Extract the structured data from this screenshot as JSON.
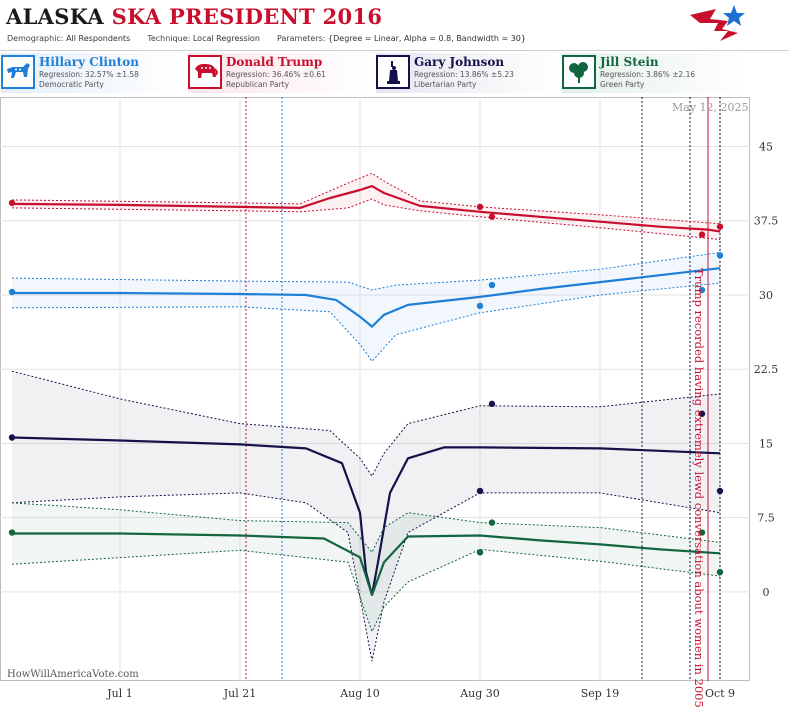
{
  "header": {
    "title_state": "ALASKA",
    "title_rest": "SKA PRESIDENT 2016",
    "demographic_label": "Demographic:",
    "demographic_value": "All Respondents",
    "technique_label": "Technique:",
    "technique_value": "Local Regression",
    "parameters_label": "Parameters:",
    "parameters_value": "{Degree = Linear, Alpha = 0.8, Bandwidth = 30}"
  },
  "candidates": [
    {
      "name": "Hillary Clinton",
      "regression": "Regression: 32.57% ±1.58",
      "party": "Democratic Party",
      "color": "#1f7fd6",
      "icon": "donkey-icon"
    },
    {
      "name": "Donald Trump",
      "regression": "Regression: 36.46% ±0.61",
      "party": "Republican Party",
      "color": "#c8102e",
      "icon": "elephant-icon"
    },
    {
      "name": "Gary Johnson",
      "regression": "Regression: 13.86% ±5.23",
      "party": "Libertarian Party",
      "color": "#14124a",
      "icon": "statue-of-liberty-icon"
    },
    {
      "name": "Jill Stein",
      "regression": "Regression: 3.86% ±2.16",
      "party": "Green Party",
      "color": "#13653f",
      "icon": "tree-icon"
    }
  ],
  "datestamp": "May 12, 2025",
  "watermark": "HowWillAmericaVote.com",
  "annotation": "Trump recorded having extremely lewd conversation about women in 2005",
  "chart_data": {
    "type": "line",
    "x_domain": [
      "2016-06-11",
      "2016-10-14"
    ],
    "ylim": [
      -9,
      50
    ],
    "y_ticks": [
      0,
      7.5,
      15,
      22.5,
      30,
      37.5,
      45
    ],
    "y_tick_labels": [
      "0",
      "7.5",
      "15",
      "22.5",
      "30",
      "37.5",
      "45"
    ],
    "x_ticks": [
      {
        "date": "2016-07-01",
        "label": "Jul 1"
      },
      {
        "date": "2016-07-21",
        "label": "Jul 21"
      },
      {
        "date": "2016-08-10",
        "label": "Aug 10"
      },
      {
        "date": "2016-08-30",
        "label": "Aug 30"
      },
      {
        "date": "2016-09-19",
        "label": "Sep 19"
      },
      {
        "date": "2016-10-09",
        "label": "Oct 9"
      }
    ],
    "grid": true,
    "event_lines": [
      {
        "date": "2016-07-22",
        "color": "#c8102e"
      },
      {
        "date": "2016-07-28",
        "color": "#1f7fd6"
      },
      {
        "date": "2016-09-26",
        "color": "#14124a"
      },
      {
        "date": "2016-10-04",
        "color": "#14124a"
      },
      {
        "date": "2016-10-07",
        "color": "#c8102e",
        "solid": true
      },
      {
        "date": "2016-10-09",
        "color": "#14124a"
      }
    ],
    "series": [
      {
        "name": "Donald Trump",
        "color": "#c8102e",
        "line": [
          [
            "2016-06-13",
            39.2
          ],
          [
            "2016-07-01",
            39.1
          ],
          [
            "2016-07-21",
            38.9
          ],
          [
            "2016-07-31",
            38.8
          ],
          [
            "2016-08-05",
            39.8
          ],
          [
            "2016-08-10",
            40.6
          ],
          [
            "2016-08-12",
            41.0
          ],
          [
            "2016-08-14",
            40.3
          ],
          [
            "2016-08-20",
            39.0
          ],
          [
            "2016-08-30",
            38.4
          ],
          [
            "2016-09-09",
            37.9
          ],
          [
            "2016-09-19",
            37.4
          ],
          [
            "2016-09-29",
            36.9
          ],
          [
            "2016-10-07",
            36.6
          ],
          [
            "2016-10-09",
            36.4
          ]
        ],
        "upper": [
          [
            "2016-06-13",
            39.6
          ],
          [
            "2016-07-21",
            39.3
          ],
          [
            "2016-07-31",
            39.2
          ],
          [
            "2016-08-08",
            41.3
          ],
          [
            "2016-08-12",
            42.3
          ],
          [
            "2016-08-14",
            41.5
          ],
          [
            "2016-08-20",
            39.5
          ],
          [
            "2016-08-30",
            38.9
          ],
          [
            "2016-09-19",
            38.1
          ],
          [
            "2016-10-09",
            37.2
          ]
        ],
        "lower": [
          [
            "2016-06-13",
            38.8
          ],
          [
            "2016-07-21",
            38.5
          ],
          [
            "2016-07-31",
            38.4
          ],
          [
            "2016-08-08",
            38.8
          ],
          [
            "2016-08-12",
            39.7
          ],
          [
            "2016-08-14",
            39.1
          ],
          [
            "2016-08-20",
            38.5
          ],
          [
            "2016-08-30",
            37.9
          ],
          [
            "2016-09-19",
            36.8
          ],
          [
            "2016-10-09",
            35.6
          ]
        ],
        "points": [
          [
            "2016-06-13",
            39.3
          ],
          [
            "2016-08-30",
            38.9
          ],
          [
            "2016-09-01",
            37.9
          ],
          [
            "2016-10-06",
            36.1
          ],
          [
            "2016-10-09",
            36.9
          ]
        ]
      },
      {
        "name": "Hillary Clinton",
        "color": "#1f7fd6",
        "line": [
          [
            "2016-06-13",
            30.2
          ],
          [
            "2016-07-01",
            30.2
          ],
          [
            "2016-07-21",
            30.1
          ],
          [
            "2016-08-01",
            30.0
          ],
          [
            "2016-08-06",
            29.5
          ],
          [
            "2016-08-10",
            27.8
          ],
          [
            "2016-08-12",
            26.8
          ],
          [
            "2016-08-14",
            28.0
          ],
          [
            "2016-08-18",
            29.0
          ],
          [
            "2016-08-30",
            29.8
          ],
          [
            "2016-09-09",
            30.6
          ],
          [
            "2016-09-19",
            31.3
          ],
          [
            "2016-09-29",
            32.0
          ],
          [
            "2016-10-09",
            32.7
          ]
        ],
        "upper": [
          [
            "2016-06-13",
            31.7
          ],
          [
            "2016-07-21",
            31.4
          ],
          [
            "2016-08-08",
            31.3
          ],
          [
            "2016-08-12",
            30.5
          ],
          [
            "2016-08-16",
            31.0
          ],
          [
            "2016-08-30",
            31.5
          ],
          [
            "2016-09-19",
            32.6
          ],
          [
            "2016-10-09",
            34.3
          ]
        ],
        "lower": [
          [
            "2016-06-13",
            28.7
          ],
          [
            "2016-07-21",
            28.8
          ],
          [
            "2016-08-05",
            28.3
          ],
          [
            "2016-08-10",
            25.0
          ],
          [
            "2016-08-12",
            23.3
          ],
          [
            "2016-08-16",
            26.0
          ],
          [
            "2016-08-30",
            28.2
          ],
          [
            "2016-09-19",
            30.0
          ],
          [
            "2016-10-09",
            31.2
          ]
        ],
        "points": [
          [
            "2016-06-13",
            30.3
          ],
          [
            "2016-08-30",
            28.9
          ],
          [
            "2016-09-01",
            31.0
          ],
          [
            "2016-10-06",
            30.5
          ],
          [
            "2016-10-09",
            34.0
          ]
        ]
      },
      {
        "name": "Gary Johnson",
        "color": "#14124a",
        "line": [
          [
            "2016-06-13",
            15.6
          ],
          [
            "2016-07-01",
            15.3
          ],
          [
            "2016-07-21",
            14.9
          ],
          [
            "2016-08-01",
            14.5
          ],
          [
            "2016-08-07",
            13.0
          ],
          [
            "2016-08-10",
            8.0
          ],
          [
            "2016-08-11",
            2.0
          ],
          [
            "2016-08-12",
            -0.3
          ],
          [
            "2016-08-13",
            3.0
          ],
          [
            "2016-08-15",
            10.0
          ],
          [
            "2016-08-18",
            13.5
          ],
          [
            "2016-08-24",
            14.6
          ],
          [
            "2016-08-30",
            14.6
          ],
          [
            "2016-09-19",
            14.5
          ],
          [
            "2016-10-09",
            14.0
          ]
        ],
        "upper": [
          [
            "2016-06-13",
            22.3
          ],
          [
            "2016-07-01",
            19.5
          ],
          [
            "2016-07-21",
            17.0
          ],
          [
            "2016-08-05",
            16.3
          ],
          [
            "2016-08-10",
            13.5
          ],
          [
            "2016-08-12",
            11.7
          ],
          [
            "2016-08-14",
            14.0
          ],
          [
            "2016-08-18",
            17.0
          ],
          [
            "2016-08-30",
            18.8
          ],
          [
            "2016-09-19",
            18.7
          ],
          [
            "2016-10-09",
            20.0
          ]
        ],
        "lower": [
          [
            "2016-06-13",
            9.0
          ],
          [
            "2016-07-01",
            9.6
          ],
          [
            "2016-07-21",
            10.0
          ],
          [
            "2016-08-01",
            9.0
          ],
          [
            "2016-08-08",
            6.0
          ],
          [
            "2016-08-12",
            -7.0
          ],
          [
            "2016-08-14",
            -1.0
          ],
          [
            "2016-08-18",
            6.0
          ],
          [
            "2016-08-30",
            10.0
          ],
          [
            "2016-09-19",
            10.0
          ],
          [
            "2016-10-09",
            8.0
          ]
        ],
        "points": [
          [
            "2016-06-13",
            15.6
          ],
          [
            "2016-08-30",
            10.2
          ],
          [
            "2016-09-01",
            19.0
          ],
          [
            "2016-10-06",
            18.0
          ],
          [
            "2016-10-09",
            10.2
          ]
        ]
      },
      {
        "name": "Jill Stein",
        "color": "#13653f",
        "line": [
          [
            "2016-06-13",
            5.9
          ],
          [
            "2016-07-01",
            5.9
          ],
          [
            "2016-07-21",
            5.7
          ],
          [
            "2016-08-04",
            5.4
          ],
          [
            "2016-08-10",
            3.5
          ],
          [
            "2016-08-12",
            -0.3
          ],
          [
            "2016-08-14",
            3.0
          ],
          [
            "2016-08-18",
            5.6
          ],
          [
            "2016-08-30",
            5.7
          ],
          [
            "2016-09-09",
            5.2
          ],
          [
            "2016-09-19",
            4.8
          ],
          [
            "2016-09-29",
            4.3
          ],
          [
            "2016-10-09",
            3.9
          ]
        ],
        "upper": [
          [
            "2016-06-13",
            9.0
          ],
          [
            "2016-07-01",
            8.3
          ],
          [
            "2016-07-21",
            7.2
          ],
          [
            "2016-08-08",
            7.0
          ],
          [
            "2016-08-12",
            4.0
          ],
          [
            "2016-08-14",
            6.5
          ],
          [
            "2016-08-18",
            8.0
          ],
          [
            "2016-08-30",
            7.0
          ],
          [
            "2016-09-19",
            6.5
          ],
          [
            "2016-10-09",
            5.0
          ]
        ],
        "lower": [
          [
            "2016-06-13",
            2.8
          ],
          [
            "2016-07-21",
            4.2
          ],
          [
            "2016-08-08",
            3.0
          ],
          [
            "2016-08-12",
            -4.0
          ],
          [
            "2016-08-14",
            -1.5
          ],
          [
            "2016-08-18",
            1.0
          ],
          [
            "2016-08-30",
            4.3
          ],
          [
            "2016-09-19",
            3.1
          ],
          [
            "2016-10-09",
            1.6
          ]
        ],
        "points": [
          [
            "2016-06-13",
            6.0
          ],
          [
            "2016-08-30",
            4.0
          ],
          [
            "2016-09-01",
            7.0
          ],
          [
            "2016-10-06",
            6.0
          ],
          [
            "2016-10-09",
            2.0
          ]
        ]
      }
    ]
  }
}
